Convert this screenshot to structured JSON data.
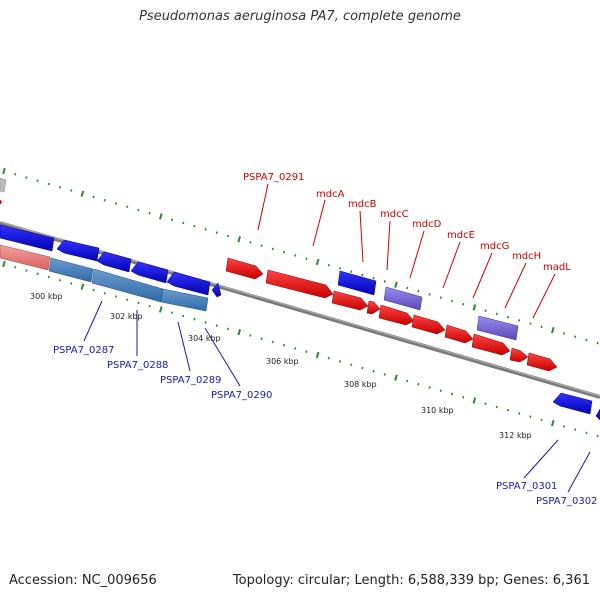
{
  "title": "Pseudomonas aeruginosa PA7, complete genome",
  "footer": {
    "accession": "Accession: NC_009656",
    "stats": "Topology: circular; Length: 6,588,339 bp; Genes: 6,361"
  },
  "colors": {
    "forward_gene": "#ee0000",
    "reverse_gene": "#0000ee",
    "rna_or_other": "#7b68d8",
    "forward_label": "#cc0000",
    "reverse_label": "#1a1aa8",
    "backbone": "#7a7a7a",
    "ticks": "#2a8a2a"
  },
  "scale_labels": [
    "300 kbp",
    "302 kbp",
    "304 kbp",
    "306 kbp",
    "308 kbp",
    "310 kbp",
    "312 kbp"
  ],
  "forward_labels": [
    "PSPA7_0291",
    "mdcA",
    "mdcB",
    "mdcC",
    "mdcD",
    "mdcE",
    "mdcG",
    "mdcH",
    "madL"
  ],
  "reverse_labels": [
    "PSPA7_0287",
    "PSPA7_0288",
    "PSPA7_0289",
    "PSPA7_0290",
    "PSPA7_0301",
    "PSPA7_0302"
  ]
}
